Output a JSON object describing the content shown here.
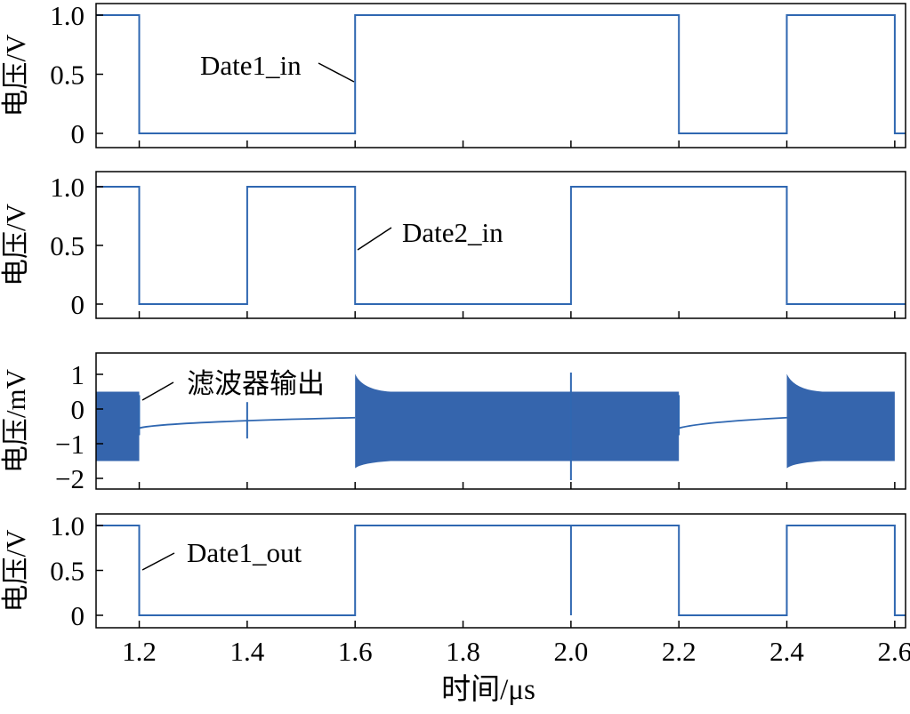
{
  "figure": {
    "xlabel": "时间/μs"
  },
  "colors": {
    "signal": "#2f67b1",
    "signal_fill": "#3565ad",
    "axis": "#000000"
  },
  "chart_data": [
    {
      "type": "line",
      "ylabel": "电压/V",
      "xlim": [
        1.12,
        2.62
      ],
      "ylim": [
        -0.1,
        1.1
      ],
      "xticks": [
        1.2,
        1.4,
        1.6,
        1.8,
        2.0,
        2.2,
        2.4,
        2.6
      ],
      "yticks": [
        0,
        0.5,
        1.0
      ],
      "ytick_labels": [
        "0",
        "0.5",
        "1.0"
      ],
      "series": [
        {
          "name": "Date1_in",
          "x": [
            1.12,
            1.2,
            1.2,
            1.6,
            1.6,
            2.2,
            2.2,
            2.4,
            2.4,
            2.6,
            2.6,
            2.62
          ],
          "y": [
            1,
            1,
            0,
            0,
            1,
            1,
            0,
            0,
            1,
            1,
            0,
            0
          ]
        }
      ],
      "annotation": {
        "text": "Date1_in",
        "x": 1.6,
        "y": 0.45
      }
    },
    {
      "type": "line",
      "ylabel": "电压/V",
      "xlim": [
        1.12,
        2.62
      ],
      "ylim": [
        -0.1,
        1.1
      ],
      "xticks": [
        1.2,
        1.4,
        1.6,
        1.8,
        2.0,
        2.2,
        2.4,
        2.6
      ],
      "yticks": [
        0,
        0.5,
        1.0
      ],
      "ytick_labels": [
        "0",
        "0.5",
        "1.0"
      ],
      "series": [
        {
          "name": "Date2_in",
          "x": [
            1.12,
            1.2,
            1.2,
            1.4,
            1.4,
            1.6,
            1.6,
            2.0,
            2.0,
            2.4,
            2.4,
            2.62
          ],
          "y": [
            1,
            1,
            0,
            0,
            1,
            1,
            0,
            0,
            1,
            1,
            0,
            0
          ]
        }
      ],
      "annotation": {
        "text": "Date2_in",
        "x": 1.6,
        "y": 0.5
      }
    },
    {
      "type": "area",
      "ylabel": "电压/mV",
      "xlim": [
        1.12,
        2.62
      ],
      "ylim": [
        -2.35,
        1.6
      ],
      "xticks": [
        1.2,
        1.4,
        1.6,
        1.8,
        2.0,
        2.2,
        2.4,
        2.6
      ],
      "yticks": [
        -2,
        -1,
        0,
        1
      ],
      "ytick_labels": [
        "−2",
        "−1",
        "0",
        "1"
      ],
      "series": [
        {
          "name": "滤波器输出",
          "bands": [
            {
              "x": [
                1.12,
                1.2
              ],
              "upper": 0.5,
              "lower": -1.5
            },
            {
              "x": [
                1.6,
                2.2
              ],
              "upper": 0.5,
              "lower": -1.5
            },
            {
              "x": [
                2.4,
                2.6
              ],
              "upper": 0.5,
              "lower": -1.5
            }
          ],
          "baseline": [
            {
              "x": [
                1.2,
                1.6
              ],
              "y_start": -0.55,
              "y_end": -0.25
            },
            {
              "x": [
                2.2,
                2.4
              ],
              "y_start": -0.55,
              "y_end": -0.25
            }
          ],
          "spikes": [
            {
              "x": 1.4,
              "min": -0.85,
              "max": 0.2
            },
            {
              "x": 2.0,
              "min": -2.05,
              "max": 1.05
            }
          ]
        }
      ],
      "annotation": {
        "text": "滤波器输出",
        "x": 1.2,
        "y": 0.3
      }
    },
    {
      "type": "line",
      "ylabel": "电压/V",
      "xlim": [
        1.12,
        2.62
      ],
      "ylim": [
        -0.1,
        1.1
      ],
      "xticks": [
        1.2,
        1.4,
        1.6,
        1.8,
        2.0,
        2.2,
        2.4,
        2.6
      ],
      "xtick_labels": [
        "1.2",
        "1.4",
        "1.6",
        "1.8",
        "2.0",
        "2.2",
        "2.4",
        "2.6"
      ],
      "yticks": [
        0,
        0.5,
        1.0
      ],
      "ytick_labels": [
        "0",
        "0.5",
        "1.0"
      ],
      "series": [
        {
          "name": "Date1_out",
          "x": [
            1.12,
            1.2,
            1.2,
            1.6,
            1.6,
            2.0,
            2.0,
            2.0,
            2.0,
            2.2,
            2.2,
            2.4,
            2.4,
            2.6,
            2.6,
            2.62
          ],
          "y": [
            1,
            1,
            0,
            0,
            1,
            1,
            0,
            0,
            1,
            1,
            0,
            0,
            1,
            1,
            0,
            0
          ]
        }
      ],
      "annotation": {
        "text": "Date1_out",
        "x": 1.2,
        "y": 0.5
      }
    }
  ]
}
